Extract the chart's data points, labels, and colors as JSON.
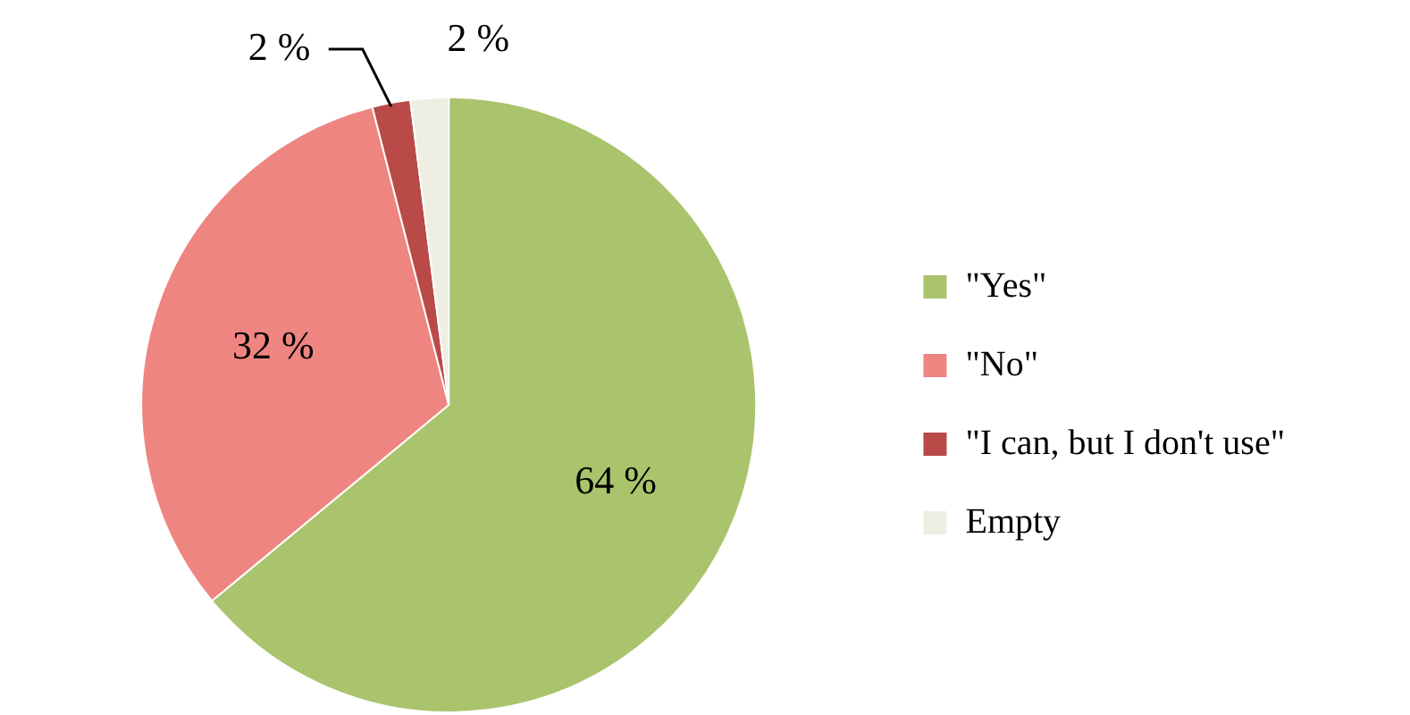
{
  "chart_data": {
    "type": "pie",
    "categories": [
      "\"Yes\"",
      "\"No\"",
      "\"I can, but I don't use\"",
      "Empty"
    ],
    "values": [
      64,
      32,
      2,
      2
    ],
    "colors": [
      "#a9c46c",
      "#ee8580",
      "#b94a48",
      "#eeeee2"
    ],
    "value_labels": [
      "64 %",
      "32 %",
      "2 %",
      "2 %"
    ],
    "legend": "right"
  }
}
